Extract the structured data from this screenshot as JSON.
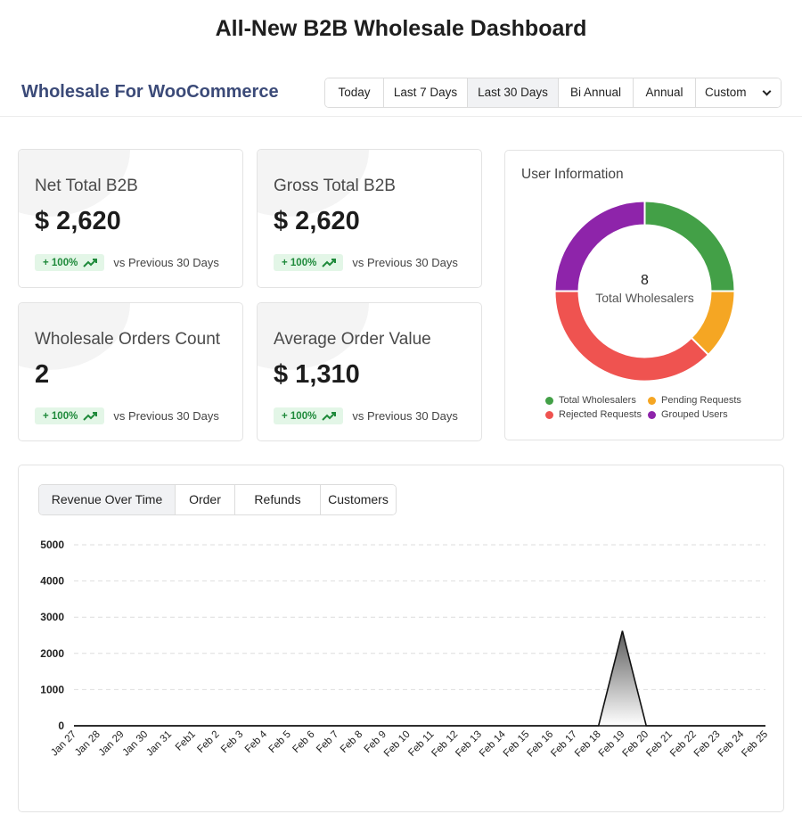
{
  "page_title": "All-New B2B Wholesale Dashboard",
  "brand": "Wholesale For WooCommerce",
  "date_ranges": [
    "Today",
    "Last 7 Days",
    "Last 30 Days",
    "Bi Annual",
    "Annual"
  ],
  "active_range": "Last 30 Days",
  "custom_select": {
    "selected": "Custom"
  },
  "stats": [
    {
      "label": "Net Total B2B",
      "value": "$ 2,620",
      "change": "+ 100%",
      "compare": "vs Previous 30 Days"
    },
    {
      "label": "Gross Total B2B",
      "value": "$ 2,620",
      "change": "+ 100%",
      "compare": "vs Previous 30 Days"
    },
    {
      "label": "Wholesale Orders Count",
      "value": "2",
      "change": "+ 100%",
      "compare": "vs Previous 30 Days"
    },
    {
      "label": "Average Order Value",
      "value": "$ 1,310",
      "change": "+ 100%",
      "compare": "vs Previous 30 Days"
    }
  ],
  "user_info": {
    "title": "User Information",
    "center_value": "8",
    "center_label": "Total Wholesalers",
    "segments": [
      {
        "name": "Total Wholesalers",
        "value": 2,
        "color": "#43a047"
      },
      {
        "name": "Pending Requests",
        "value": 1,
        "color": "#f5a623"
      },
      {
        "name": "Rejected Requests",
        "value": 3,
        "color": "#ef5350"
      },
      {
        "name": "Grouped Users",
        "value": 2,
        "color": "#8e24aa"
      }
    ]
  },
  "chart_tabs": [
    "Revenue Over Time",
    "Order",
    "Refunds",
    "Customers"
  ],
  "active_chart_tab": "Revenue Over Time",
  "chart_data": {
    "type": "area",
    "x": [
      "Jan 27",
      "Jan 28",
      "Jan 29",
      "Jan 30",
      "Jan 31",
      "Feb1",
      "Feb 2",
      "Feb 3",
      "Feb 4",
      "Feb 5",
      "Feb 6",
      "Feb 7",
      "Feb 8",
      "Feb 9",
      "Feb 10",
      "Feb 11",
      "Feb 12",
      "Feb 13",
      "Feb 14",
      "Feb 15",
      "Feb 16",
      "Feb 17",
      "Feb 18",
      "Feb 19",
      "Feb 20",
      "Feb 21",
      "Feb 22",
      "Feb 23",
      "Feb 24",
      "Feb 25"
    ],
    "values": [
      0,
      0,
      0,
      0,
      0,
      0,
      0,
      0,
      0,
      0,
      0,
      0,
      0,
      0,
      0,
      0,
      0,
      0,
      0,
      0,
      0,
      0,
      0,
      2620,
      0,
      0,
      0,
      0,
      0,
      0
    ],
    "yticks": [
      0,
      1000,
      2000,
      3000,
      4000,
      5000
    ],
    "ylim": [
      0,
      5000
    ],
    "grid": true
  }
}
